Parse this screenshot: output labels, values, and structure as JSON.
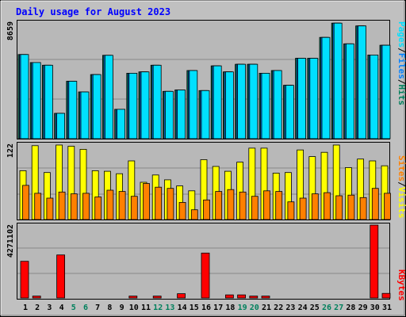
{
  "chart_data": {
    "type": "bar",
    "title": "Daily usage for August 2023",
    "days": [
      "1",
      "2",
      "3",
      "4",
      "5",
      "6",
      "7",
      "8",
      "9",
      "10",
      "11",
      "12",
      "13",
      "14",
      "15",
      "16",
      "17",
      "18",
      "19",
      "20",
      "21",
      "22",
      "23",
      "24",
      "25",
      "26",
      "27",
      "28",
      "29",
      "30",
      "31"
    ],
    "weekend_days": [
      "5",
      "6",
      "12",
      "13",
      "19",
      "20",
      "26",
      "27"
    ],
    "panels": [
      {
        "name": "pages-files-hits",
        "ylabel_parts": [
          "Pages",
          "/",
          "Files",
          "/",
          "Hits"
        ],
        "ymax_label": "8659",
        "ymax": 8659,
        "series": [
          {
            "name": "Hits",
            "color": "#00805c",
            "values": [
              6300,
              5700,
              5500,
              1900,
              4300,
              3500,
              4800,
              6240,
              2200,
              4900,
              5000,
              5500,
              3540,
              3650,
              5100,
              3600,
              5450,
              5000,
              5570,
              5570,
              4900,
              5100,
              4000,
              6020,
              6020,
              7580,
              8650,
              7100,
              8440,
              6260,
              6990
            ]
          },
          {
            "name": "Files",
            "color": "#0080ff",
            "values": [
              6300,
              5700,
              5500,
              1900,
              4300,
              3500,
              4800,
              6240,
              2200,
              4900,
              5000,
              5500,
              3540,
              3650,
              5100,
              3600,
              5450,
              5000,
              5570,
              5570,
              4900,
              5100,
              4000,
              6020,
              6020,
              7580,
              8650,
              7100,
              8440,
              6260,
              6990
            ]
          },
          {
            "name": "Pages",
            "color": "#00e0ff",
            "values": [
              6300,
              5700,
              5500,
              1900,
              4300,
              3500,
              4800,
              6240,
              2200,
              4900,
              5000,
              5500,
              3540,
              3650,
              5100,
              3600,
              5450,
              5000,
              5570,
              5570,
              4900,
              5100,
              4000,
              6020,
              6020,
              7580,
              8650,
              7100,
              8440,
              6260,
              6990
            ]
          }
        ]
      },
      {
        "name": "sites-visits",
        "ylabel_parts": [
          "Sites",
          "/",
          "Visits"
        ],
        "ymax_label": "122",
        "ymax": 122,
        "series": [
          {
            "name": "Visits",
            "color": "#ffff00",
            "values": [
              80,
              121,
              77,
              122,
              120,
              115,
              80,
              79,
              75,
              96,
              61,
              73,
              65,
              55,
              47,
              98,
              87,
              79,
              94,
              117,
              117,
              76,
              77,
              114,
              103,
              110,
              122,
              85,
              99,
              96,
              88
            ]
          },
          {
            "name": "Sites",
            "color": "#ff8000",
            "values": [
              56,
              43,
              35,
              45,
              42,
              43,
              37,
              48,
              46,
              38,
              59,
              53,
              51,
              28,
              16,
              32,
              46,
              49,
              45,
              38,
              47,
              46,
              29,
              35,
              42,
              44,
              39,
              40,
              36,
              51,
              43
            ]
          }
        ]
      },
      {
        "name": "kbytes",
        "ylabel_parts": [
          "KBytes"
        ],
        "ymax_label": "4271102",
        "ymax": 4271102,
        "series": [
          {
            "name": "KBytes",
            "color": "#ff0000",
            "values": [
              2150000,
              110000,
              0,
              2520000,
              0,
              0,
              0,
              0,
              0,
              110000,
              0,
              110000,
              0,
              250000,
              0,
              2630000,
              0,
              180000,
              180000,
              110000,
              110000,
              0,
              0,
              0,
              0,
              0,
              0,
              0,
              0,
              4271102,
              270000
            ]
          }
        ]
      }
    ]
  }
}
